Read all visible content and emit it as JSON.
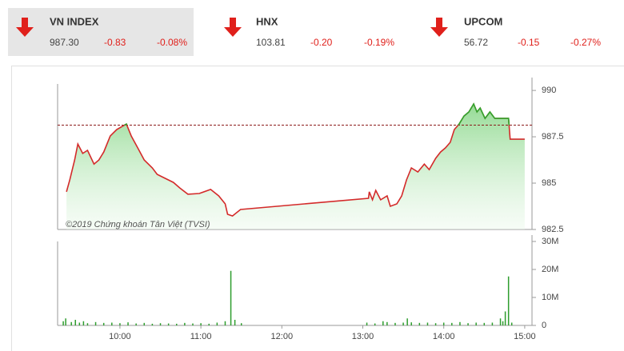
{
  "tickers": [
    {
      "name": "VN INDEX",
      "value": "987.30",
      "change": "-0.83",
      "pct": "-0.08%"
    },
    {
      "name": "HNX",
      "value": "103.81",
      "change": "-0.20",
      "pct": "-0.19%"
    },
    {
      "name": "UPCOM",
      "value": "56.72",
      "change": "-0.15",
      "pct": "-0.27%"
    }
  ],
  "watermark": "©2019 Chứng khoán Tân Việt (TVSI)",
  "chart_data": [
    {
      "type": "line",
      "color": "#d42a2a",
      "up_color": "#2ea82e",
      "reference": 988.13,
      "xlim": [
        9.23,
        15.09
      ],
      "ylim": [
        982.5,
        990.35
      ],
      "yticks": [
        982.5,
        985,
        987.5,
        990
      ],
      "x": [
        9.34,
        9.38,
        9.44,
        9.48,
        9.54,
        9.6,
        9.68,
        9.74,
        9.8,
        9.88,
        9.96,
        10.08,
        10.14,
        10.22,
        10.3,
        10.4,
        10.46,
        10.54,
        10.66,
        10.74,
        10.84,
        10.98,
        11.12,
        11.22,
        11.3,
        11.33,
        11.39,
        11.49,
        13.07,
        13.08,
        13.12,
        13.16,
        13.22,
        13.3,
        13.34,
        13.42,
        13.48,
        13.54,
        13.6,
        13.68,
        13.76,
        13.82,
        13.9,
        13.96,
        14.02,
        14.08,
        14.13,
        14.19,
        14.25,
        14.31,
        14.37,
        14.41,
        14.45,
        14.51,
        14.57,
        14.63,
        14.8,
        14.82,
        15.0
      ],
      "values": [
        984.53,
        985.17,
        986.25,
        987.11,
        986.6,
        986.77,
        986.03,
        986.25,
        986.68,
        987.54,
        987.89,
        988.19,
        987.54,
        986.9,
        986.25,
        985.82,
        985.47,
        985.3,
        985.04,
        984.74,
        984.4,
        984.44,
        984.66,
        984.31,
        983.88,
        983.32,
        983.23,
        983.58,
        984.18,
        984.53,
        984.1,
        984.61,
        984.1,
        984.31,
        983.75,
        983.88,
        984.31,
        985.17,
        985.82,
        985.6,
        986.03,
        985.73,
        986.34,
        986.68,
        986.9,
        987.2,
        987.89,
        988.19,
        988.62,
        988.84,
        989.27,
        988.84,
        989.05,
        988.49,
        988.84,
        988.49,
        988.49,
        987.37,
        987.37
      ]
    },
    {
      "type": "bar",
      "color": "#2e9d2e",
      "xlim": [
        9.23,
        15.09
      ],
      "ylim": [
        0,
        30000000
      ],
      "yticks": [
        0,
        {
          "value": 10000000,
          "label": "10M"
        },
        {
          "value": 20000000,
          "label": "20M"
        },
        {
          "value": 30000000,
          "label": "30M"
        }
      ],
      "xticks": [
        {
          "value": 10,
          "label": "10:00"
        },
        {
          "value": 11,
          "label": "11:00"
        },
        {
          "value": 12,
          "label": "12:00"
        },
        {
          "value": 13,
          "label": "13:00"
        },
        {
          "value": 14,
          "label": "14:00"
        },
        {
          "value": 15,
          "label": "15:00"
        }
      ],
      "x": [
        9.3,
        9.33,
        9.4,
        9.45,
        9.5,
        9.55,
        9.6,
        9.7,
        9.8,
        9.9,
        10.0,
        10.1,
        10.2,
        10.3,
        10.4,
        10.5,
        10.6,
        10.7,
        10.8,
        10.9,
        11.0,
        11.1,
        11.2,
        11.3,
        11.37,
        11.42,
        11.5,
        13.05,
        13.15,
        13.25,
        13.3,
        13.4,
        13.5,
        13.55,
        13.6,
        13.7,
        13.8,
        13.9,
        14.0,
        14.1,
        14.2,
        14.3,
        14.4,
        14.5,
        14.6,
        14.7,
        14.73,
        14.76,
        14.8,
        14.84
      ],
      "values": [
        1500000,
        2500000,
        1200000,
        2000000,
        1000000,
        1500000,
        800000,
        1200000,
        900000,
        1000000,
        800000,
        1100000,
        700000,
        900000,
        600000,
        800000,
        700000,
        600000,
        900000,
        700000,
        800000,
        600000,
        1000000,
        1500000,
        19500000,
        2000000,
        800000,
        1000000,
        700000,
        1500000,
        1200000,
        900000,
        1000000,
        2500000,
        1100000,
        900000,
        1000000,
        800000,
        1000000,
        900000,
        1200000,
        800000,
        1000000,
        900000,
        1000000,
        2500000,
        1500000,
        5000000,
        17500000,
        1000000
      ]
    }
  ]
}
